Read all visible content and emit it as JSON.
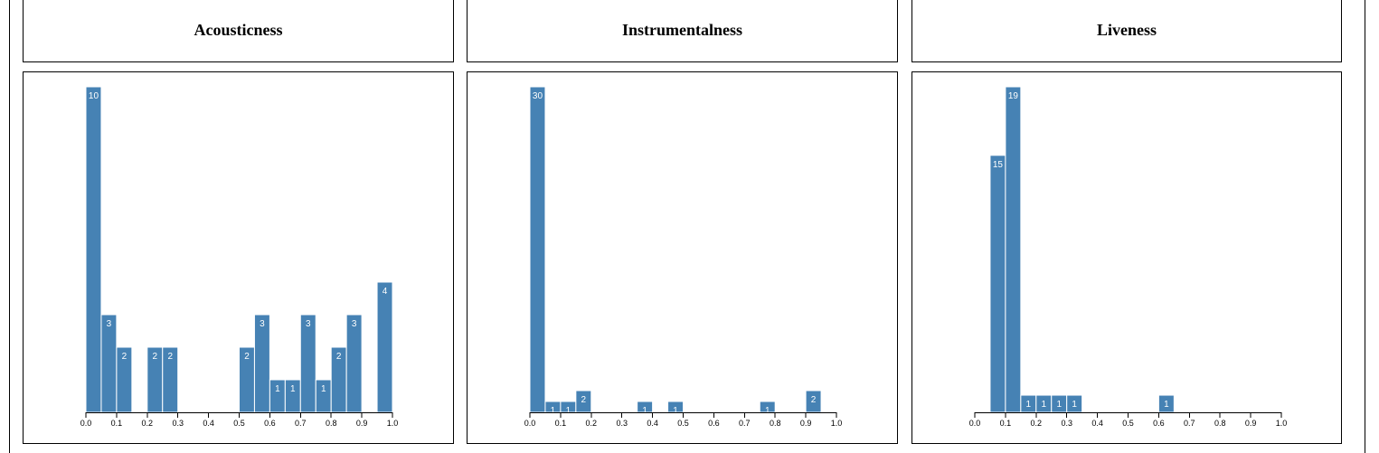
{
  "panels": [
    {
      "title": "Acousticness"
    },
    {
      "title": "Instrumentalness"
    },
    {
      "title": "Liveness"
    }
  ],
  "chart_data": [
    {
      "type": "bar",
      "title": "Acousticness",
      "bin_width": 0.05,
      "xlim": [
        0,
        1
      ],
      "ylim": [
        0,
        10
      ],
      "x_ticks": [
        "0.0",
        "0.1",
        "0.2",
        "0.3",
        "0.4",
        "0.5",
        "0.6",
        "0.7",
        "0.8",
        "0.9",
        "1.0"
      ],
      "bins": [
        {
          "x0": 0.0,
          "count": 10
        },
        {
          "x0": 0.05,
          "count": 3
        },
        {
          "x0": 0.1,
          "count": 2
        },
        {
          "x0": 0.2,
          "count": 2
        },
        {
          "x0": 0.25,
          "count": 2
        },
        {
          "x0": 0.5,
          "count": 2
        },
        {
          "x0": 0.55,
          "count": 3
        },
        {
          "x0": 0.6,
          "count": 1
        },
        {
          "x0": 0.65,
          "count": 1
        },
        {
          "x0": 0.7,
          "count": 3
        },
        {
          "x0": 0.75,
          "count": 1
        },
        {
          "x0": 0.8,
          "count": 2
        },
        {
          "x0": 0.85,
          "count": 3
        },
        {
          "x0": 0.95,
          "count": 4
        }
      ],
      "bar_color": "#4682b4"
    },
    {
      "type": "bar",
      "title": "Instrumentalness",
      "bin_width": 0.05,
      "xlim": [
        0,
        1
      ],
      "ylim": [
        0,
        30
      ],
      "x_ticks": [
        "0.0",
        "0.1",
        "0.2",
        "0.3",
        "0.4",
        "0.5",
        "0.6",
        "0.7",
        "0.8",
        "0.9",
        "1.0"
      ],
      "bins": [
        {
          "x0": 0.0,
          "count": 30
        },
        {
          "x0": 0.05,
          "count": 1
        },
        {
          "x0": 0.1,
          "count": 1
        },
        {
          "x0": 0.15,
          "count": 2
        },
        {
          "x0": 0.35,
          "count": 1
        },
        {
          "x0": 0.45,
          "count": 1
        },
        {
          "x0": 0.75,
          "count": 1
        },
        {
          "x0": 0.9,
          "count": 2
        }
      ],
      "bar_color": "#4682b4"
    },
    {
      "type": "bar",
      "title": "Liveness",
      "bin_width": 0.05,
      "xlim": [
        0,
        1
      ],
      "ylim": [
        0,
        19
      ],
      "x_ticks": [
        "0.0",
        "0.1",
        "0.2",
        "0.3",
        "0.4",
        "0.5",
        "0.6",
        "0.7",
        "0.8",
        "0.9",
        "1.0"
      ],
      "bins": [
        {
          "x0": 0.05,
          "count": 15
        },
        {
          "x0": 0.1,
          "count": 19
        },
        {
          "x0": 0.15,
          "count": 1
        },
        {
          "x0": 0.2,
          "count": 1
        },
        {
          "x0": 0.25,
          "count": 1
        },
        {
          "x0": 0.3,
          "count": 1
        },
        {
          "x0": 0.6,
          "count": 1
        }
      ],
      "bar_color": "#4682b4"
    }
  ]
}
